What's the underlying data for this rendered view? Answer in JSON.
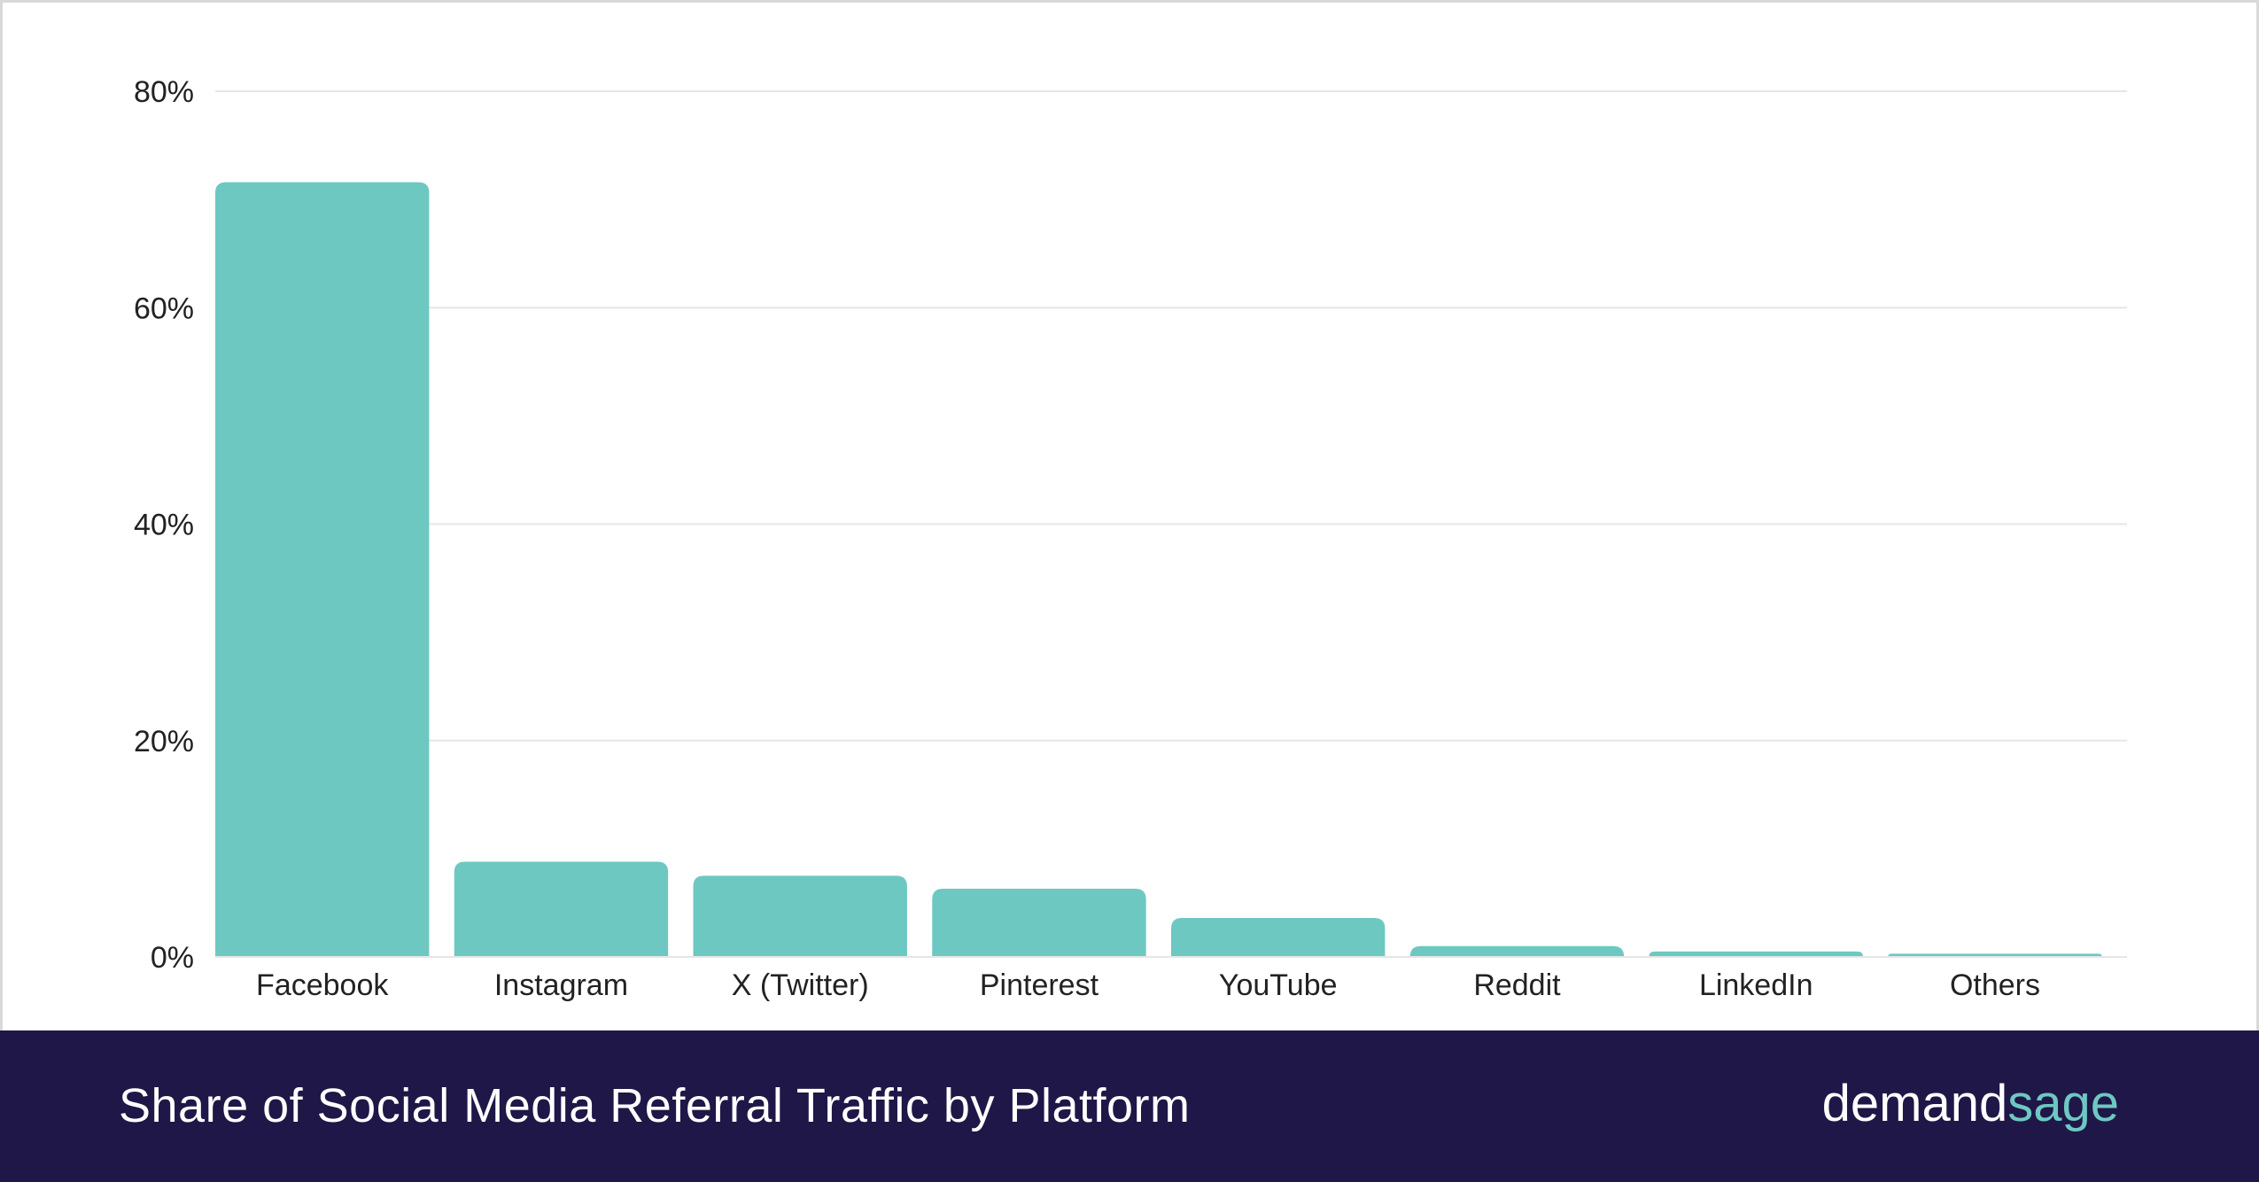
{
  "colors": {
    "bar": "#6ec8c2",
    "grid": "#e6e6e6",
    "footer_bg": "#1f1747",
    "brand_accent": "#6ec8c2"
  },
  "footer": {
    "title": "Share of Social Media Referral Traffic by Platform"
  },
  "logo": {
    "part1": "demand",
    "part2": "sage"
  },
  "chart_data": {
    "type": "bar",
    "categories": [
      "Facebook",
      "Instagram",
      "X (Twitter)",
      "Pinterest",
      "YouTube",
      "Reddit",
      "LinkedIn",
      "Others"
    ],
    "values": [
      71.6,
      8.8,
      7.5,
      6.3,
      3.6,
      1.0,
      0.5,
      0.3
    ],
    "title": "Share of Social Media Referral Traffic by Platform",
    "xlabel": "",
    "ylabel": "",
    "ylim": [
      0,
      80
    ],
    "yticks": [
      "0%",
      "20%",
      "40%",
      "60%",
      "80%"
    ],
    "grid": true,
    "legend": "none"
  }
}
